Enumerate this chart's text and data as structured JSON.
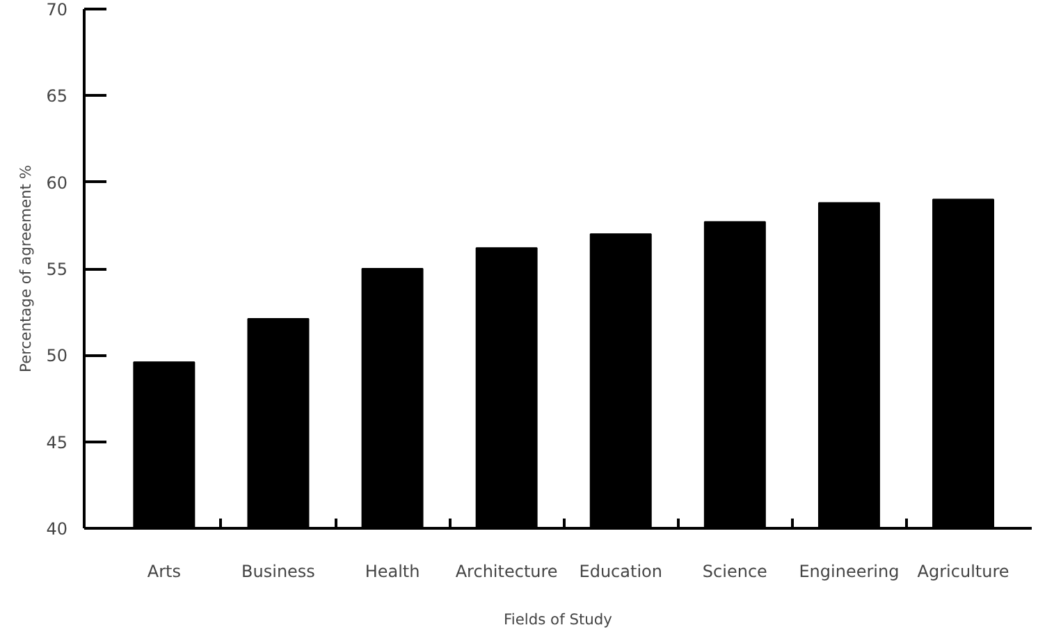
{
  "chart_data": {
    "type": "bar",
    "xlabel": "Fields of Study",
    "ylabel": "Percentage of agreement %",
    "categories": [
      "Arts",
      "Business",
      "Health",
      "Architecture",
      "Education",
      "Science",
      "Engineering",
      "Agriculture"
    ],
    "values": [
      49.6,
      52.1,
      55.0,
      56.2,
      57.0,
      57.7,
      58.8,
      59.0
    ],
    "color": "#000000",
    "ylim": [
      40,
      70
    ],
    "yticks": [
      40,
      45,
      50,
      55,
      60,
      65,
      70
    ],
    "grid": false
  }
}
